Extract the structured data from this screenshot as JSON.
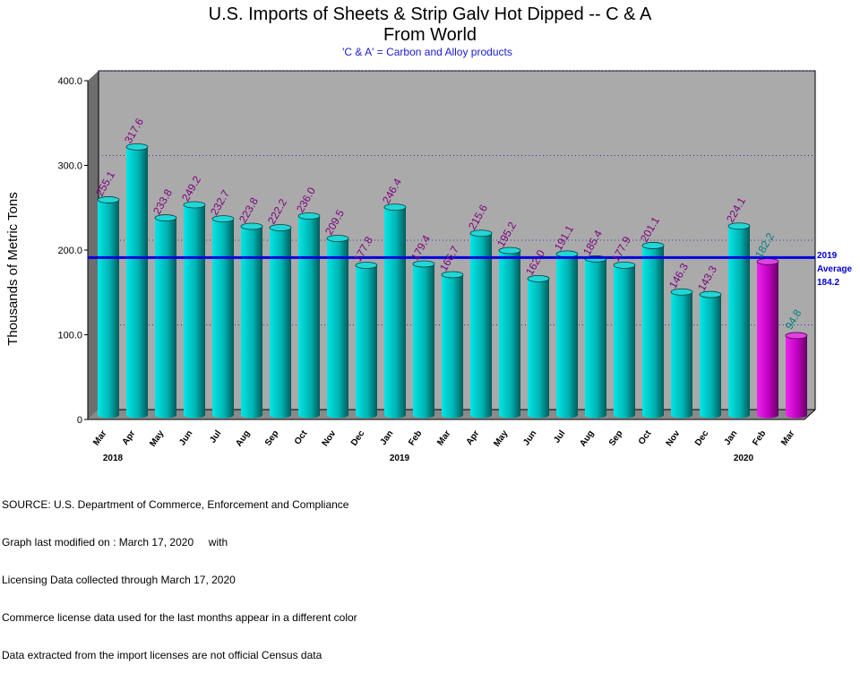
{
  "chart_data": {
    "type": "bar",
    "title": "U.S. Imports of Sheets & Strip Galv Hot Dipped -- C & A",
    "title2": "From World",
    "subtitle": "'C & A' = Carbon and Alloy products",
    "ylabel": "Thousands of Metric Tons",
    "ylim": [
      0,
      400
    ],
    "yticks": [
      "0",
      "100.0",
      "200.0",
      "300.0",
      "400.0"
    ],
    "categories": [
      "Mar",
      "Apr",
      "May",
      "Jun",
      "Jul",
      "Aug",
      "Sep",
      "Oct",
      "Nov",
      "Dec",
      "Jan",
      "Feb",
      "Mar",
      "Apr",
      "May",
      "Jun",
      "Jul",
      "Aug",
      "Sep",
      "Oct",
      "Nov",
      "Dec",
      "Jan",
      "Feb",
      "Mar"
    ],
    "years": [
      {
        "label": "2018",
        "index": 0
      },
      {
        "label": "2019",
        "index": 10
      },
      {
        "label": "2020",
        "index": 22
      }
    ],
    "values": [
      255.1,
      317.6,
      233.8,
      249.2,
      232.7,
      223.8,
      222.2,
      236.0,
      209.5,
      177.8,
      246.4,
      179.4,
      166.7,
      215.6,
      195.2,
      162.0,
      191.1,
      185.4,
      177.9,
      201.1,
      146.3,
      143.3,
      224.1,
      182.2,
      94.8
    ],
    "labels": [
      "255.1",
      "317.6",
      "233.8",
      "249.2",
      "232.7",
      "223.8",
      "222.2",
      "236.0",
      "209.5",
      "177.8",
      "246.4",
      "179.4",
      "166.7",
      "215.6",
      "195.2",
      "162.0",
      "191.1",
      "185.4",
      "177.9",
      "201.1",
      "146.3",
      "143.3",
      "224.1",
      "182.2",
      "94.8"
    ],
    "license_data_start_index": 23,
    "average": {
      "value": 184.2,
      "line1": "2019",
      "line2": "Average",
      "line3": "184.2"
    },
    "grid": "dotted horizontal",
    "colors": {
      "census_bar": "#00c8c8",
      "license_bar": "#cc00cc",
      "census_label": "#800080",
      "license_label": "#008080",
      "average_line": "#0000dd",
      "plot_background": "#aaaaaa"
    }
  },
  "footer": {
    "lines": [
      "SOURCE: U.S. Department of Commerce, Enforcement and Compliance",
      "Graph last modified on : March 17, 2020     with",
      "Licensing Data collected through March 17, 2020",
      "Commerce license data used for the last months appear in a different color",
      "Data extracted from the import licenses are not official Census data"
    ]
  }
}
